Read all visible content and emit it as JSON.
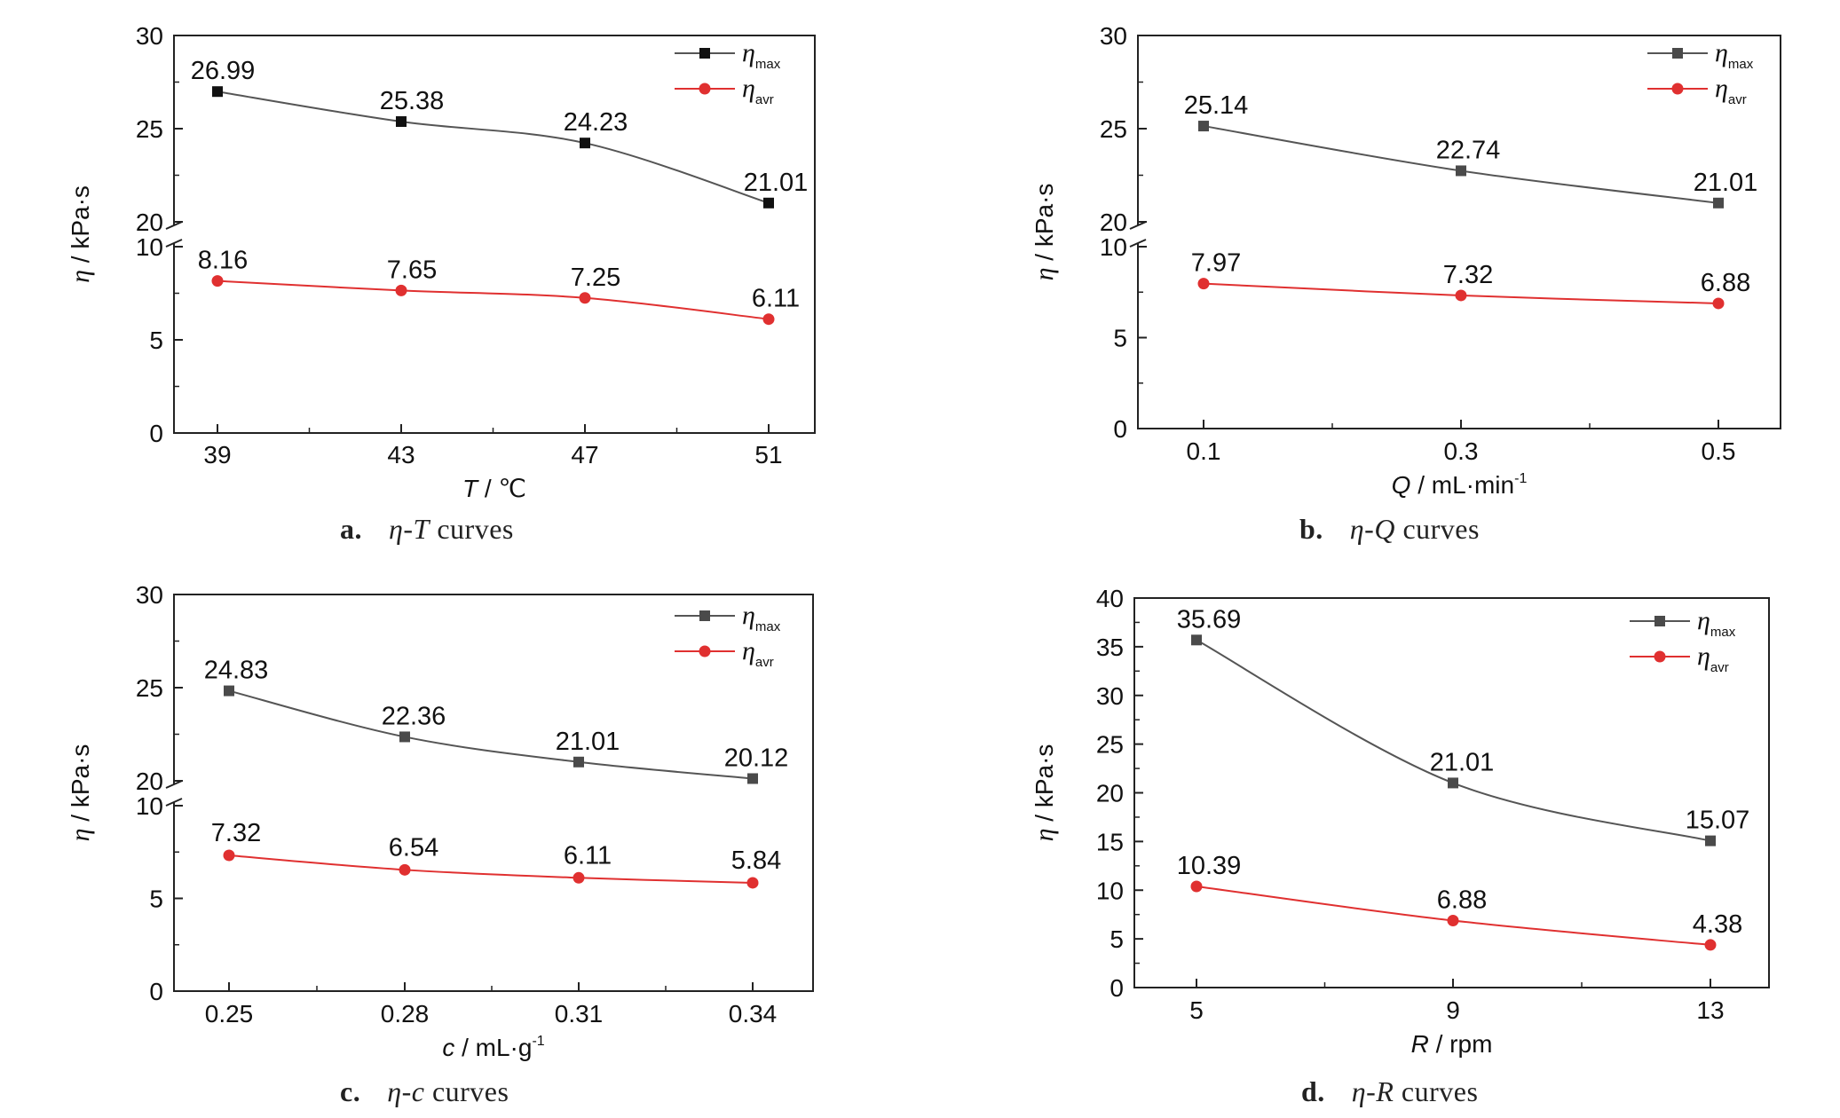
{
  "captions": [
    {
      "letter": "a.",
      "sym": "η",
      "dash": "-",
      "var": "T",
      "rest": " curves"
    },
    {
      "letter": "b.",
      "sym": "η",
      "dash": "-",
      "var": "Q",
      "rest": " curves"
    },
    {
      "letter": "c.",
      "sym": "η",
      "dash": "-",
      "var": "c",
      "rest": " curves"
    },
    {
      "letter": "d.",
      "sym": "η",
      "dash": "-",
      "var": "R",
      "rest": " curves"
    }
  ],
  "colors": {
    "max_line": "#555555",
    "max_marker_a": "#111111",
    "max_marker": "#4a4a4a",
    "avr": "#e03030",
    "axis": "#222222"
  },
  "chart_data": [
    {
      "type": "line",
      "broken_y_axis": true,
      "x": [
        39,
        43,
        47,
        51
      ],
      "x_tick_labels": [
        "39",
        "43",
        "47",
        "51"
      ],
      "xlabel_var": "T",
      "xlabel_unit": " / ℃",
      "xlabel_sup": "",
      "ylabel_var": "η",
      "ylabel_unit": " / kPa·s",
      "y_lower_ticks": [
        "0",
        "5",
        "10"
      ],
      "y_upper_ticks": [
        "20",
        "25",
        "30"
      ],
      "ylim_lower": [
        0,
        10
      ],
      "ylim_upper": [
        20,
        30
      ],
      "series": [
        {
          "name": "η",
          "sub": "max",
          "values": [
            26.99,
            25.38,
            24.23,
            21.01
          ],
          "labels": [
            "26.99",
            "25.38",
            "24.23",
            "21.01"
          ],
          "marker": "square"
        },
        {
          "name": "η",
          "sub": "avr",
          "values": [
            8.16,
            7.65,
            7.25,
            6.11
          ],
          "labels": [
            "8.16",
            "7.65",
            "7.25",
            "6.11"
          ],
          "marker": "circle"
        }
      ],
      "legend": "top-right",
      "grid": false
    },
    {
      "type": "line",
      "broken_y_axis": true,
      "x": [
        0.1,
        0.3,
        0.5
      ],
      "x_tick_labels": [
        "0.1",
        "0.3",
        "0.5"
      ],
      "xlabel_var": "Q",
      "xlabel_unit": " / mL·min",
      "xlabel_sup": "-1",
      "ylabel_var": "η",
      "ylabel_unit": " / kPa·s",
      "y_lower_ticks": [
        "0",
        "5",
        "10"
      ],
      "y_upper_ticks": [
        "20",
        "25",
        "30"
      ],
      "ylim_lower": [
        0,
        10
      ],
      "ylim_upper": [
        20,
        30
      ],
      "series": [
        {
          "name": "η",
          "sub": "max",
          "values": [
            25.14,
            22.74,
            21.01
          ],
          "labels": [
            "25.14",
            "22.74",
            "21.01"
          ],
          "marker": "square"
        },
        {
          "name": "η",
          "sub": "avr",
          "values": [
            7.97,
            7.32,
            6.88
          ],
          "labels": [
            "7.97",
            "7.32",
            "6.88"
          ],
          "marker": "circle"
        }
      ],
      "legend": "top-right",
      "grid": false
    },
    {
      "type": "line",
      "broken_y_axis": true,
      "x": [
        0.25,
        0.28,
        0.31,
        0.34
      ],
      "x_tick_labels": [
        "0.25",
        "0.28",
        "0.31",
        "0.34"
      ],
      "xlabel_var": "c",
      "xlabel_unit": " / mL·g",
      "xlabel_sup": "-1",
      "ylabel_var": "η",
      "ylabel_unit": " / kPa·s",
      "y_lower_ticks": [
        "0",
        "5",
        "10"
      ],
      "y_upper_ticks": [
        "20",
        "25",
        "30"
      ],
      "ylim_lower": [
        0,
        10
      ],
      "ylim_upper": [
        20,
        30
      ],
      "series": [
        {
          "name": "η",
          "sub": "max",
          "values": [
            24.83,
            22.36,
            21.01,
            20.12
          ],
          "labels": [
            "24.83",
            "22.36",
            "21.01",
            "20.12"
          ],
          "marker": "square"
        },
        {
          "name": "η",
          "sub": "avr",
          "values": [
            7.32,
            6.54,
            6.11,
            5.84
          ],
          "labels": [
            "7.32",
            "6.54",
            "6.11",
            "5.84"
          ],
          "marker": "circle"
        }
      ],
      "legend": "top-right",
      "grid": false
    },
    {
      "type": "line",
      "broken_y_axis": false,
      "x": [
        5,
        9,
        13
      ],
      "x_tick_labels": [
        "5",
        "9",
        "13"
      ],
      "xlabel_var": "R",
      "xlabel_unit": " / rpm",
      "xlabel_sup": "",
      "ylabel_var": "η",
      "ylabel_unit": " / kPa·s",
      "y_ticks": [
        "0",
        "5",
        "10",
        "15",
        "20",
        "25",
        "30",
        "35",
        "40"
      ],
      "ylim": [
        0,
        40
      ],
      "series": [
        {
          "name": "η",
          "sub": "max",
          "values": [
            35.69,
            21.01,
            15.07
          ],
          "labels": [
            "35.69",
            "21.01",
            "15.07"
          ],
          "marker": "square"
        },
        {
          "name": "η",
          "sub": "avr",
          "values": [
            10.39,
            6.88,
            4.38
          ],
          "labels": [
            "10.39",
            "6.88",
            "4.38"
          ],
          "marker": "circle"
        }
      ],
      "legend": "top-right",
      "grid": false
    }
  ]
}
